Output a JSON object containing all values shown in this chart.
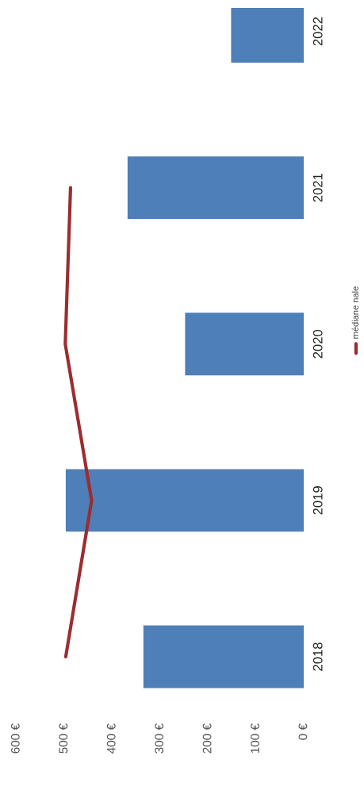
{
  "chart_data": {
    "type": "bar",
    "orientation": "horizontal",
    "categories": [
      "2022",
      "2021",
      "2020",
      "2019",
      "2018"
    ],
    "series": [
      {
        "color": "#4f7fb8",
        "values": [
          152,
          368,
          248,
          497,
          335
        ]
      },
      {
        "type": "line",
        "name": "médiane nale",
        "color": "#9b2d30",
        "values": [
          null,
          487,
          498,
          443,
          497
        ]
      }
    ],
    "xlim": [
      600,
      0
    ],
    "xticks": [
      {
        "value": 600,
        "label": "600 €"
      },
      {
        "value": 500,
        "label": "500 €"
      },
      {
        "value": 400,
        "label": "400 €"
      },
      {
        "value": 300,
        "label": "300 €"
      },
      {
        "value": 200,
        "label": "200 €"
      },
      {
        "value": 100,
        "label": "100 €"
      },
      {
        "value": 0,
        "label": "0 €"
      }
    ],
    "grid": false,
    "legend": "right",
    "line_style": "solid",
    "marker": "none"
  }
}
